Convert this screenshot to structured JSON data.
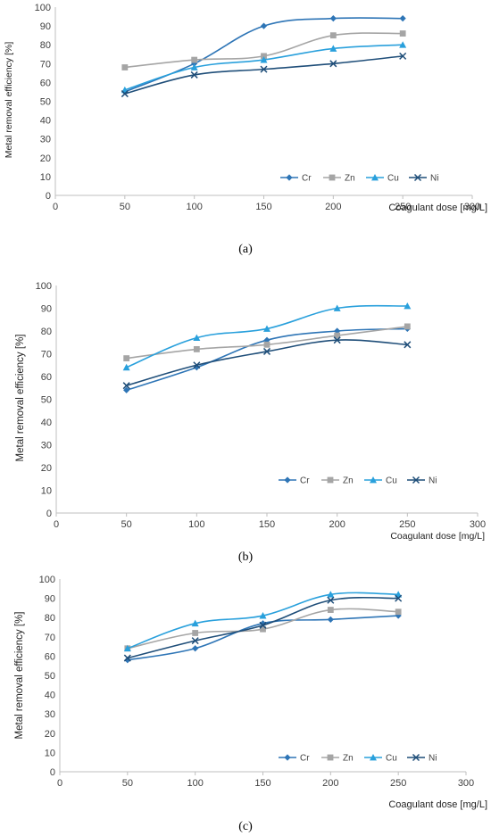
{
  "chart_data": [
    {
      "type": "line",
      "caption": "(a)",
      "xlabel": "Coagulant dose [mg/L]",
      "ylabel": "Metal removal efficiency [%]",
      "xlim": [
        0,
        300
      ],
      "ylim": [
        0,
        100
      ],
      "xticks": [
        "0",
        "50",
        "100",
        "150",
        "200",
        "250",
        "300"
      ],
      "yticks": [
        "0",
        "10",
        "20",
        "30",
        "40",
        "50",
        "60",
        "70",
        "80",
        "90",
        "100"
      ],
      "grid": false,
      "legend_position": "bottom-right",
      "x": [
        50,
        100,
        150,
        200,
        250
      ],
      "series": [
        {
          "name": "Cr",
          "values": [
            55,
            70,
            90,
            94,
            94
          ]
        },
        {
          "name": "Zn",
          "values": [
            68,
            72,
            74,
            85,
            86
          ]
        },
        {
          "name": "Cu",
          "values": [
            56,
            68,
            72,
            78,
            80
          ]
        },
        {
          "name": "Ni",
          "values": [
            54,
            64,
            67,
            70,
            74
          ]
        }
      ]
    },
    {
      "type": "line",
      "caption": "(b)",
      "xlabel": "Coagulant dose [mg/L]",
      "ylabel": "Metal removal efficiency [%]",
      "xlim": [
        0,
        300
      ],
      "ylim": [
        0,
        100
      ],
      "xticks": [
        "0",
        "50",
        "100",
        "150",
        "200",
        "250",
        "300"
      ],
      "yticks": [
        "0",
        "10",
        "20",
        "30",
        "40",
        "50",
        "60",
        "70",
        "80",
        "90",
        "100"
      ],
      "grid": false,
      "legend_position": "bottom-right",
      "x": [
        50,
        100,
        150,
        200,
        250
      ],
      "series": [
        {
          "name": "Cr",
          "values": [
            54,
            64,
            76,
            80,
            81
          ]
        },
        {
          "name": "Zn",
          "values": [
            68,
            72,
            74,
            78,
            82
          ]
        },
        {
          "name": "Cu",
          "values": [
            64,
            77,
            81,
            90,
            91
          ]
        },
        {
          "name": "Ni",
          "values": [
            56,
            65,
            71,
            76,
            74
          ]
        }
      ]
    },
    {
      "type": "line",
      "caption": "(c)",
      "xlabel": "Coagulant dose [mg/L]",
      "ylabel": "Metal removal efficiency [%]",
      "xlim": [
        0,
        300
      ],
      "ylim": [
        0,
        100
      ],
      "xticks": [
        "0",
        "50",
        "100",
        "150",
        "200",
        "250",
        "300"
      ],
      "yticks": [
        "0",
        "10",
        "20",
        "30",
        "40",
        "50",
        "60",
        "70",
        "80",
        "90",
        "100"
      ],
      "grid": false,
      "legend_position": "bottom-right",
      "x": [
        50,
        100,
        150,
        200,
        250
      ],
      "series": [
        {
          "name": "Cr",
          "values": [
            58,
            64,
            77,
            79,
            81
          ]
        },
        {
          "name": "Zn",
          "values": [
            64,
            72,
            74,
            84,
            83
          ]
        },
        {
          "name": "Cu",
          "values": [
            64,
            77,
            81,
            92,
            92
          ]
        },
        {
          "name": "Ni",
          "values": [
            59,
            68,
            76,
            89,
            90
          ]
        }
      ]
    }
  ],
  "series_style": {
    "Cr": {
      "color": "#2E75B6",
      "marker": "diamond"
    },
    "Zn": {
      "color": "#A5A5A5",
      "marker": "square"
    },
    "Cu": {
      "color": "#29A0DC",
      "marker": "triangle"
    },
    "Ni": {
      "color": "#1F4E79",
      "marker": "x"
    }
  },
  "axis_color": "#BFBFBF"
}
